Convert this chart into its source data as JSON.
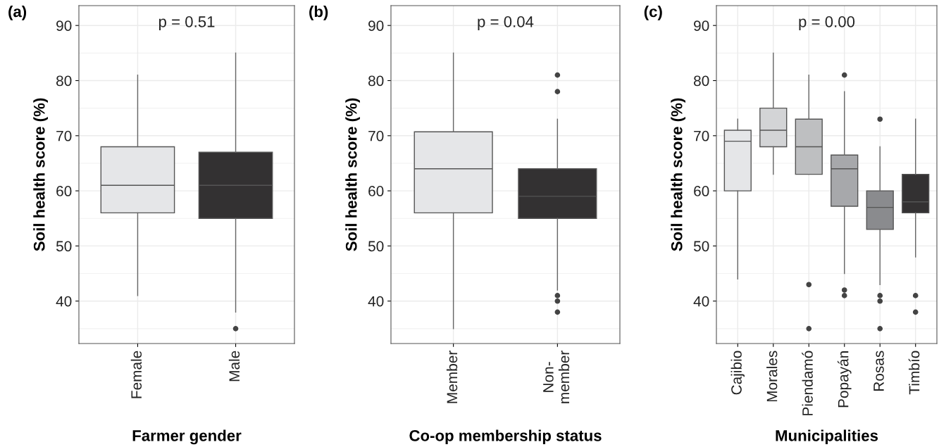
{
  "chart_data": [
    {
      "type": "box",
      "xlabel": "Farmer gender",
      "ylabel": "Soil health score (%)",
      "annotations": [
        "(a)",
        "p = 0.51"
      ],
      "categories": [
        "Female",
        "Male"
      ],
      "colors": [
        "#e5e6e8",
        "#333132"
      ],
      "ylim": [
        32.3,
        93.6
      ],
      "yticks": [
        40,
        50,
        60,
        70,
        80,
        90
      ],
      "grid": true,
      "boxes": [
        {
          "low": 41,
          "q1": 56,
          "median": 61,
          "q3": 68,
          "high": 81
        },
        {
          "low": 38,
          "q1": 55,
          "median": 61,
          "q3": 67,
          "high": 85,
          "outliers": [
            35
          ]
        }
      ]
    },
    {
      "type": "box",
      "xlabel": "Co-op membership status",
      "ylabel": "Soil health score (%)",
      "annotations": [
        "(b)",
        "p = 0.04"
      ],
      "categories": [
        "Member",
        "Non-\nmember"
      ],
      "colors": [
        "#e5e6e8",
        "#333132"
      ],
      "ylim": [
        32.3,
        93.6
      ],
      "yticks": [
        40,
        50,
        60,
        70,
        80,
        90
      ],
      "grid": true,
      "boxes": [
        {
          "low": 35,
          "q1": 56,
          "median": 64,
          "q3": 70.7,
          "high": 85
        },
        {
          "low": 42,
          "q1": 55,
          "median": 59,
          "q3": 64,
          "high": 73,
          "outliers": [
            81,
            78,
            41,
            40,
            38
          ]
        }
      ]
    },
    {
      "type": "box",
      "xlabel": "Municipalities",
      "ylabel": "Soil health score (%)",
      "annotations": [
        "(c)",
        "p = 0.00"
      ],
      "categories": [
        "Cajibio",
        "Morales",
        "Piendamó",
        "Popayán",
        "Rosas",
        "Timbío"
      ],
      "colors": [
        "#e5e6e8",
        "#d3d4d6",
        "#bebfc1",
        "#a7a8ab",
        "#8a8b8e",
        "#333132"
      ],
      "ylim": [
        32.3,
        93.6
      ],
      "yticks": [
        40,
        50,
        60,
        70,
        80,
        90
      ],
      "grid": true,
      "boxes": [
        {
          "low": 44,
          "q1": 60,
          "median": 69,
          "q3": 71,
          "high": 73
        },
        {
          "low": 63,
          "q1": 68,
          "median": 71,
          "q3": 75,
          "high": 85
        },
        {
          "low": 63,
          "q1": 63,
          "median": 68,
          "q3": 73,
          "high": 81,
          "outliers": [
            43,
            35
          ]
        },
        {
          "low": 45,
          "q1": 57.2,
          "median": 64,
          "q3": 66.5,
          "high": 78,
          "outliers": [
            81,
            42,
            41
          ]
        },
        {
          "low": 43,
          "q1": 53,
          "median": 57,
          "q3": 60,
          "high": 68,
          "outliers": [
            73,
            41,
            40,
            35
          ]
        },
        {
          "low": 48,
          "q1": 56,
          "median": 58,
          "q3": 63,
          "high": 73,
          "outliers": [
            41,
            38
          ]
        }
      ]
    }
  ]
}
